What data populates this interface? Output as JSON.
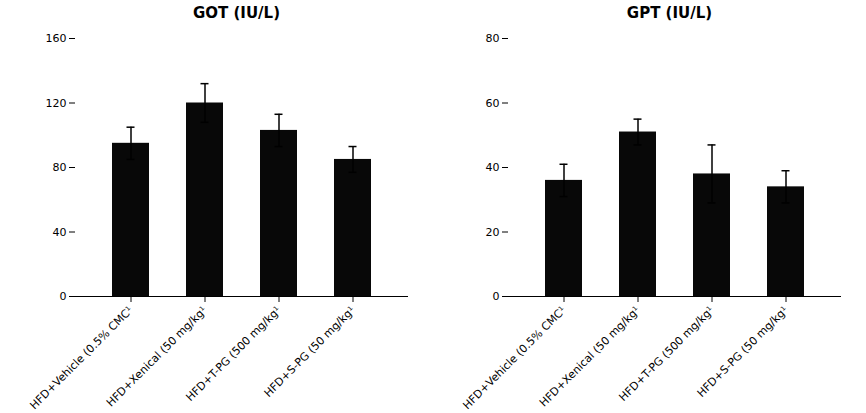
{
  "chart_data": [
    {
      "type": "bar",
      "title": "GOT (IU/L)",
      "categories": [
        "HFD+Vehicle (0.5% CMC¹",
        "HFD+Xenical (50 mg/kg¹",
        "HFD+T-PG (500 mg/kg¹",
        "HFD+S-PG (50 mg/kg¹"
      ],
      "values": [
        95,
        120,
        103,
        85
      ],
      "errors": [
        10,
        12,
        10,
        8
      ],
      "color": "#080808",
      "ylim": [
        0,
        160
      ],
      "yticks": [
        0,
        40,
        80,
        120,
        160
      ]
    },
    {
      "type": "bar",
      "title": "GPT (IU/L)",
      "categories": [
        "HFD+Vehicle (0.5% CMC¹",
        "HFD+Xenical (50 mg/kg¹",
        "HFD+T-PG (500 mg/kg¹",
        "HFD+S-PG (50 mg/kg¹"
      ],
      "values": [
        36,
        51,
        38,
        34
      ],
      "errors": [
        5,
        4,
        9,
        5
      ],
      "color": "#080808",
      "ylim": [
        0,
        80
      ],
      "yticks": [
        0,
        20,
        40,
        60,
        80
      ]
    }
  ]
}
